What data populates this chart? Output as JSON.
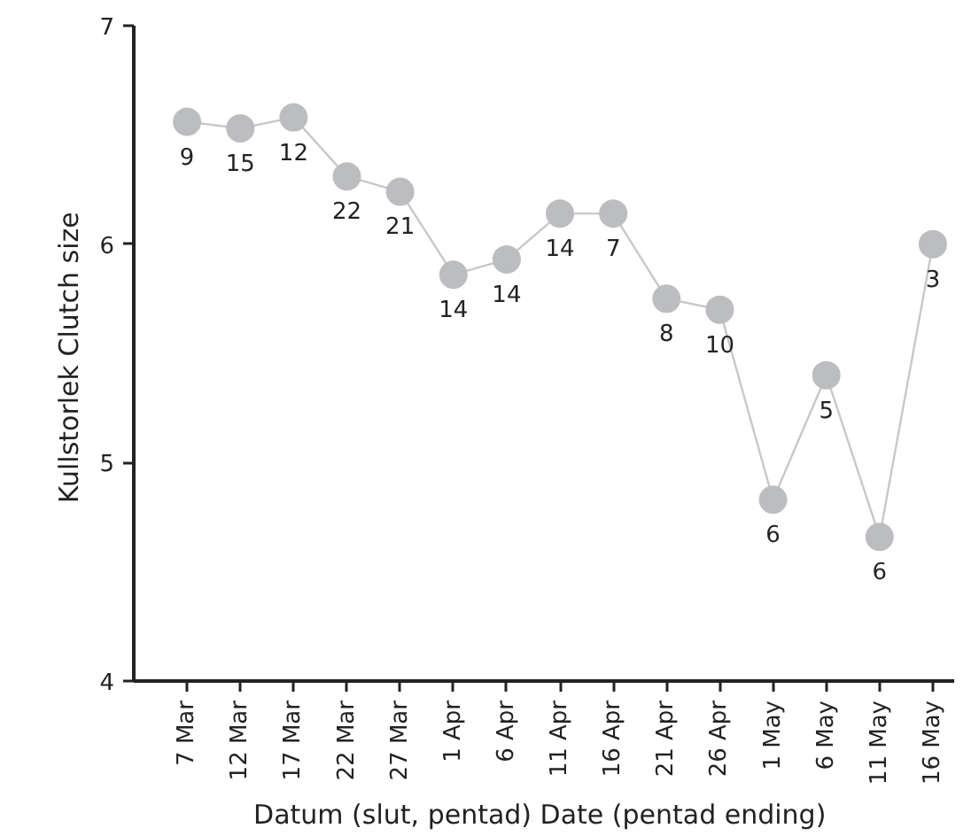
{
  "chart_data": {
    "type": "line",
    "xlabel": "Datum (slut, pentad)  Date (pentad ending)",
    "ylabel": "Kullstorlek  Clutch size",
    "categories": [
      "7 Mar",
      "12 Mar",
      "17 Mar",
      "22 Mar",
      "27 Mar",
      "1 Apr",
      "6 Apr",
      "11 Apr",
      "16 Apr",
      "21 Apr",
      "26 Apr",
      "1 May",
      "6 May",
      "11 May",
      "16 May"
    ],
    "series": [
      {
        "color": "#bcbdc0",
        "values": [
          6.56,
          6.53,
          6.58,
          6.31,
          6.24,
          5.86,
          5.93,
          6.14,
          6.14,
          5.75,
          5.7,
          4.83,
          5.4,
          4.66,
          6.0
        ]
      }
    ],
    "marker": "circle",
    "line_style": "solid",
    "grid": false,
    "ylim": [
      4,
      7
    ],
    "yticks": [
      4,
      5,
      6,
      7
    ],
    "annotations": [
      {
        "text": "9",
        "x": "7 Mar",
        "y": 6.56
      },
      {
        "text": "15",
        "x": "12 Mar",
        "y": 6.53
      },
      {
        "text": "12",
        "x": "17 Mar",
        "y": 6.58
      },
      {
        "text": "22",
        "x": "22 Mar",
        "y": 6.31
      },
      {
        "text": "21",
        "x": "27 Mar",
        "y": 6.24
      },
      {
        "text": "14",
        "x": "1 Apr",
        "y": 5.86
      },
      {
        "text": "14",
        "x": "6 Apr",
        "y": 5.93
      },
      {
        "text": "14",
        "x": "11 Apr",
        "y": 6.14
      },
      {
        "text": "7",
        "x": "16 Apr",
        "y": 6.14
      },
      {
        "text": "8",
        "x": "21 Apr",
        "y": 5.75
      },
      {
        "text": "10",
        "x": "26 Apr",
        "y": 5.7
      },
      {
        "text": "6",
        "x": "1 May",
        "y": 4.83
      },
      {
        "text": "5",
        "x": "6 May",
        "y": 5.4
      },
      {
        "text": "6",
        "x": "11 May",
        "y": 4.66
      },
      {
        "text": "3",
        "x": "16 May",
        "y": 6.0
      }
    ]
  }
}
